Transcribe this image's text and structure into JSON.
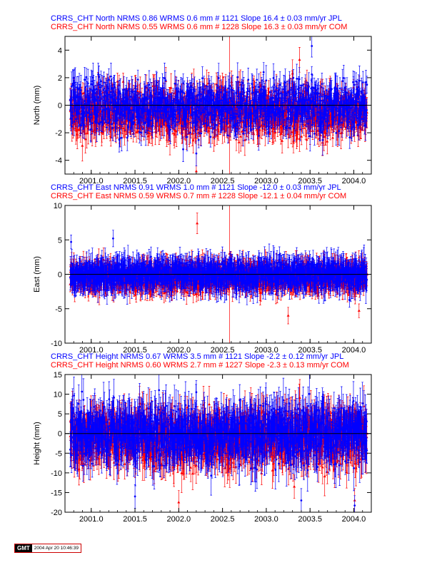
{
  "colors": {
    "blue": "#0000ff",
    "red": "#ff0000",
    "zero_line": "#000000"
  },
  "footer": {
    "logo": "GMT",
    "timestamp": "2004 Apr 20 10:46:39"
  },
  "chart_data": [
    {
      "type": "scatter",
      "component": "north",
      "titles": [
        {
          "text": "CRRS_CHT North NRMS 0.86 WRMS  0.6 mm # 1121 Slope   16.4 ±  0.03 mm/yr JPL",
          "color": "#0000ff"
        },
        {
          "text": "CRRS_CHT North NRMS 0.55 WRMS  0.6 mm # 1228 Slope   16.3 ±  0.03 mm/yr COM",
          "color": "#ff0000"
        }
      ],
      "xlabel": "",
      "ylabel": "North (mm)",
      "xlim": [
        2000.7,
        2004.2
      ],
      "ylim": [
        -5,
        5
      ],
      "xticks": [
        2001.0,
        2001.5,
        2002.0,
        2002.5,
        2003.0,
        2003.5,
        2004.0
      ],
      "xtick_labels": [
        "2001.0",
        "2001.5",
        "2002.0",
        "2002.5",
        "2003.0",
        "2003.5",
        "2004.0"
      ],
      "yticks": [
        -4,
        -2,
        0,
        2,
        4
      ],
      "ytick_labels": [
        "-4",
        "-2",
        "0",
        "2",
        "4"
      ],
      "x_range": [
        2000.76,
        2004.15
      ],
      "series": [
        {
          "name": "COM",
          "color": "#ff0000",
          "marker": "triangle",
          "n": 1228,
          "std": 0.9,
          "mean": -0.5,
          "err_base": 0.55,
          "err_jitter": 0.6,
          "seed": 11,
          "features": [
            {
              "x": 2002.2,
              "y": -4.8,
              "err": 2.5
            },
            {
              "x": 2002.58,
              "y": -1.5,
              "err": 12
            },
            {
              "x": 2003.3,
              "y": 2.3,
              "err": 1.0
            },
            {
              "x": 2003.38,
              "y": 3.3,
              "err": 0.9
            },
            {
              "x": 2004.05,
              "y": -2.2,
              "err": 0.8
            }
          ]
        },
        {
          "name": "JPL",
          "color": "#0000ff",
          "marker": "circle",
          "n": 1121,
          "std": 0.9,
          "mean": 0.0,
          "err_base": 0.55,
          "err_jitter": 0.55,
          "seed": 7,
          "features": [
            {
              "x": 2003.52,
              "y": 4.3,
              "err": 0.8
            },
            {
              "x": 2002.97,
              "y": 2.4,
              "err": 0.7
            },
            {
              "x": 2001.32,
              "y": -2.5,
              "err": 0.9
            },
            {
              "x": 2002.05,
              "y": -3.2,
              "err": 0.9
            },
            {
              "x": 2002.2,
              "y": -3.5,
              "err": 0.9
            }
          ]
        }
      ]
    },
    {
      "type": "scatter",
      "component": "east",
      "titles": [
        {
          "text": "CRRS_CHT East NRMS 0.91 WRMS  1.0 mm # 1121 Slope  -12.0 ±  0.03 mm/yr JPL",
          "color": "#0000ff"
        },
        {
          "text": "CRRS_CHT East NRMS 0.59 WRMS  0.7 mm # 1228 Slope  -12.1 ±  0.04 mm/yr COM",
          "color": "#ff0000"
        }
      ],
      "xlabel": "",
      "ylabel": "East (mm)",
      "xlim": [
        2000.7,
        2004.2
      ],
      "ylim": [
        -10,
        10
      ],
      "xticks": [
        2001.0,
        2001.5,
        2002.0,
        2002.5,
        2003.0,
        2003.5,
        2004.0
      ],
      "xtick_labels": [
        "2001.0",
        "2001.5",
        "2002.0",
        "2002.5",
        "2003.0",
        "2003.5",
        "2004.0"
      ],
      "yticks": [
        -10,
        -5,
        0,
        5,
        10
      ],
      "ytick_labels": [
        "-10",
        "-5",
        "0",
        "5",
        "10"
      ],
      "x_range": [
        2000.76,
        2004.15
      ],
      "series": [
        {
          "name": "COM",
          "color": "#ff0000",
          "marker": "triangle",
          "n": 1228,
          "std": 0.9,
          "mean": -0.4,
          "err_base": 0.9,
          "err_jitter": 1.0,
          "seed": 23,
          "features": [
            {
              "x": 2002.21,
              "y": 7.4,
              "err": 1.5
            },
            {
              "x": 2002.58,
              "y": 3.0,
              "err": 16
            },
            {
              "x": 2003.25,
              "y": -6.0,
              "err": 1.2
            },
            {
              "x": 2004.06,
              "y": -5.3,
              "err": 1.0
            }
          ]
        },
        {
          "name": "JPL",
          "color": "#0000ff",
          "marker": "circle",
          "n": 1121,
          "std": 0.95,
          "mean": 0.0,
          "err_base": 1.1,
          "err_jitter": 1.2,
          "seed": 5,
          "features": [
            {
              "x": 2000.77,
              "y": 4.7,
              "err": 1.0
            },
            {
              "x": 2001.25,
              "y": 5.2,
              "err": 1.2
            },
            {
              "x": 2003.95,
              "y": -3.7,
              "err": 1.1
            }
          ]
        }
      ]
    },
    {
      "type": "scatter",
      "component": "height",
      "titles": [
        {
          "text": "CRRS_CHT Height NRMS 0.67 WRMS  3.5 mm # 1121 Slope   -2.2 ±  0.12 mm/yr JPL",
          "color": "#0000ff"
        },
        {
          "text": "CRRS_CHT Height NRMS 0.60 WRMS  2.7 mm # 1227 Slope   -2.3 ±  0.13 mm/yr COM",
          "color": "#ff0000"
        }
      ],
      "xlabel": "",
      "ylabel": "Height (mm)",
      "xlim": [
        2000.7,
        2004.2
      ],
      "ylim": [
        -20,
        15
      ],
      "xticks": [
        2001.0,
        2001.5,
        2002.0,
        2002.5,
        2003.0,
        2003.5,
        2004.0
      ],
      "xtick_labels": [
        "2001.0",
        "2001.5",
        "2002.0",
        "2002.5",
        "2003.0",
        "2003.5",
        "2004.0"
      ],
      "yticks": [
        -20,
        -15,
        -10,
        -5,
        0,
        5,
        10,
        15
      ],
      "ytick_labels": [
        "-20",
        "-15",
        "-10",
        "-5",
        "0",
        "5",
        "10",
        "15"
      ],
      "x_range": [
        2000.76,
        2004.15
      ],
      "series": [
        {
          "name": "COM",
          "color": "#ff0000",
          "marker": "triangle",
          "n": 1227,
          "std": 3.4,
          "mean": -1.0,
          "err_base": 2.6,
          "err_jitter": 2.6,
          "seed": 31,
          "features": [
            {
              "x": 2002.0,
              "y": -17.5,
              "err": 3
            },
            {
              "x": 2004.01,
              "y": -17.0,
              "err": 3
            },
            {
              "x": 2003.32,
              "y": -13.5,
              "err": 3
            }
          ]
        },
        {
          "name": "JPL",
          "color": "#0000ff",
          "marker": "circle",
          "n": 1121,
          "std": 3.6,
          "mean": 0.0,
          "err_base": 3.0,
          "err_jitter": 3.0,
          "seed": 3,
          "features": [
            {
              "x": 2003.4,
              "y": -17.0,
              "err": 3
            },
            {
              "x": 2004.01,
              "y": -18.3,
              "err": 2.5
            },
            {
              "x": 2001.5,
              "y": -16.0,
              "err": 3
            },
            {
              "x": 2002.2,
              "y": 10.5,
              "err": 3
            }
          ]
        }
      ]
    }
  ]
}
